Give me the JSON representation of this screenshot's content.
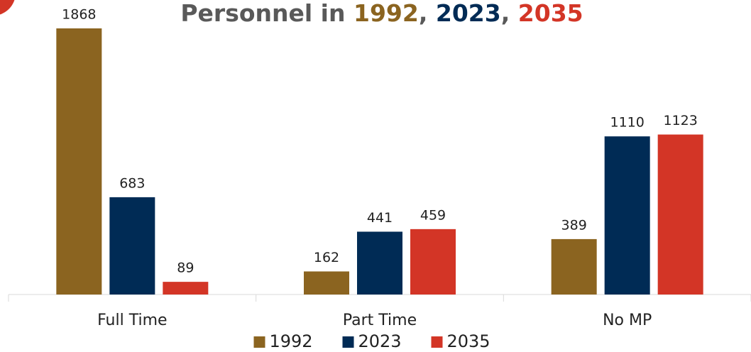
{
  "chart_data": {
    "type": "bar",
    "title": "Personnel in 1992, 2023, 2035",
    "categories": [
      "Full Time",
      "Part Time",
      "No MP"
    ],
    "series": [
      {
        "name": "1992",
        "color": "#8b6420",
        "values": [
          1868,
          162,
          389
        ]
      },
      {
        "name": "2023",
        "color": "#002b55",
        "values": [
          683,
          441,
          1110
        ]
      },
      {
        "name": "2035",
        "color": "#d33526",
        "values": [
          89,
          459,
          1123
        ]
      }
    ],
    "legend": "bottom"
  }
}
